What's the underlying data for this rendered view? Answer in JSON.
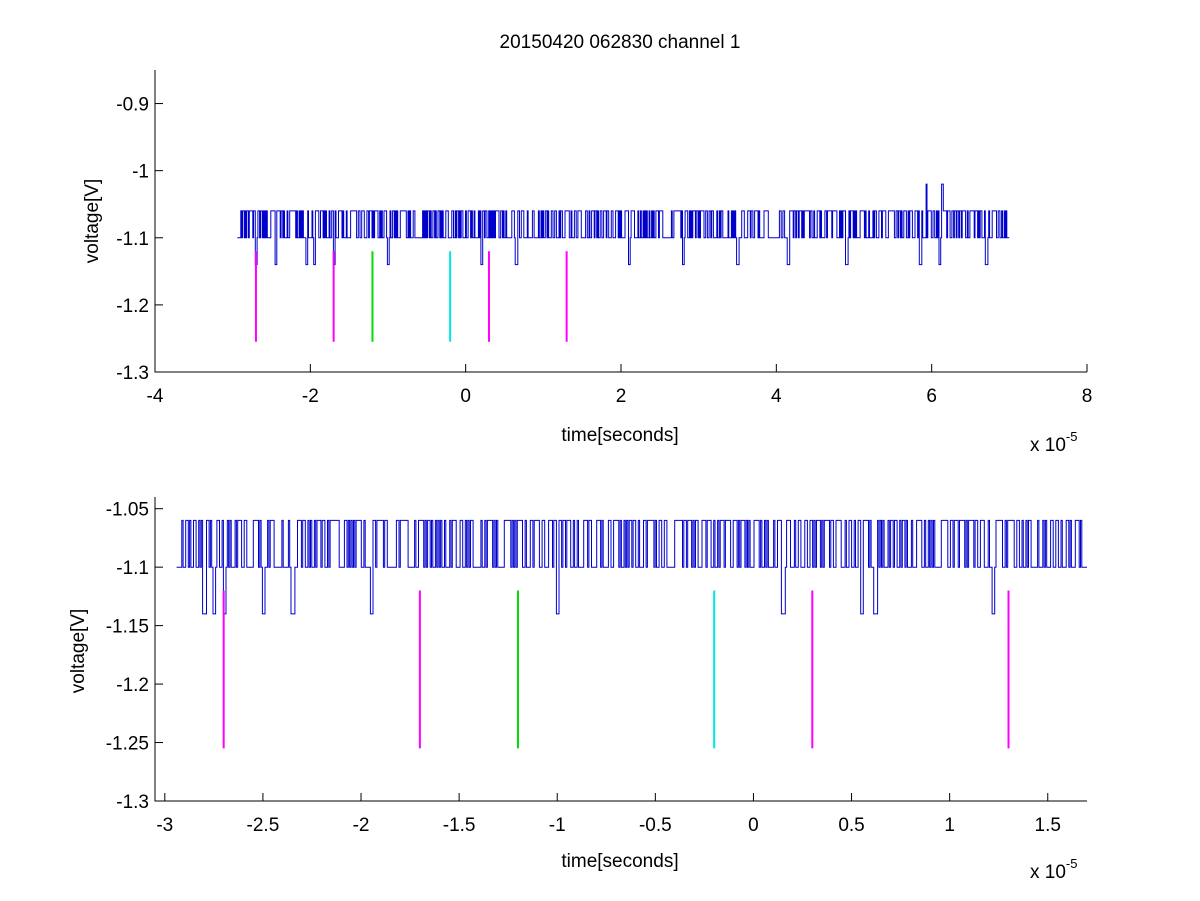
{
  "figure_title": "20150420 062830 channel 1",
  "chart_data": [
    {
      "type": "line",
      "title": "20150420 062830 channel 1",
      "xlabel": "time[seconds]",
      "ylabel": "voltage[V]",
      "x_exponent_label": "x 10",
      "x_exponent": "-5",
      "xlim": [
        -4,
        8
      ],
      "ylim": [
        -1.3,
        -0.85
      ],
      "x_ticks": [
        -4,
        -2,
        0,
        2,
        4,
        6,
        8
      ],
      "x_tick_labels": [
        "-4",
        "-2",
        "0",
        "2",
        "4",
        "6",
        "8"
      ],
      "y_ticks": [
        -1.3,
        -1.2,
        -1.1,
        -1.0,
        -0.9
      ],
      "y_tick_labels": [
        "-1.3",
        "-1.2",
        "-1.1",
        "-1",
        "-0.9"
      ],
      "grid": false,
      "series": [
        {
          "kind": "noisy-trace",
          "color": "#0000cc",
          "x_range": [
            -2.94,
            7.0
          ],
          "baseline": -1.1,
          "upper_level": -1.06,
          "lower_level": -1.14,
          "spikes": [
            {
              "x": 5.93,
              "y": -1.02
            },
            {
              "x": 6.13,
              "y": -1.02
            }
          ],
          "dips": [
            -2.7,
            -2.45,
            -2.05,
            -1.95,
            -1.7,
            -1.0,
            0.2,
            0.65,
            2.1,
            2.8,
            3.5,
            4.15,
            4.9,
            5.85,
            6.1,
            6.7
          ]
        }
      ],
      "markers": [
        {
          "x": -2.7,
          "y_top": -1.12,
          "y_bottom": -1.255,
          "color": "#ff00ff"
        },
        {
          "x": -1.7,
          "y_top": -1.12,
          "y_bottom": -1.255,
          "color": "#ff00ff"
        },
        {
          "x": -1.2,
          "y_top": -1.12,
          "y_bottom": -1.255,
          "color": "#00dd00"
        },
        {
          "x": -0.2,
          "y_top": -1.12,
          "y_bottom": -1.255,
          "color": "#00e5e5"
        },
        {
          "x": 0.3,
          "y_top": -1.12,
          "y_bottom": -1.255,
          "color": "#ff00ff"
        },
        {
          "x": 1.3,
          "y_top": -1.12,
          "y_bottom": -1.255,
          "color": "#ff00ff"
        }
      ]
    },
    {
      "type": "line",
      "title": "",
      "xlabel": "time[seconds]",
      "ylabel": "voltage[V]",
      "x_exponent_label": "x 10",
      "x_exponent": "-5",
      "xlim": [
        -3.05,
        1.7
      ],
      "ylim": [
        -1.3,
        -1.04
      ],
      "x_ticks": [
        -3,
        -2.5,
        -2,
        -1.5,
        -1,
        -0.5,
        0,
        0.5,
        1,
        1.5
      ],
      "x_tick_labels": [
        "-3",
        "-2.5",
        "-2",
        "-1.5",
        "-1",
        "-0.5",
        "0",
        "0.5",
        "1",
        "1.5"
      ],
      "y_ticks": [
        -1.3,
        -1.25,
        -1.2,
        -1.15,
        -1.1,
        -1.05
      ],
      "y_tick_labels": [
        "-1.3",
        "-1.25",
        "-1.2",
        "-1.15",
        "-1.1",
        "-1.05"
      ],
      "grid": false,
      "series": [
        {
          "kind": "noisy-trace",
          "color": "#0000cc",
          "x_range": [
            -2.94,
            1.7
          ],
          "baseline": -1.1,
          "upper_level": -1.06,
          "lower_level": -1.14,
          "spikes": [],
          "dips": [
            -2.8,
            -2.75,
            -2.7,
            -2.5,
            -2.35,
            -1.95,
            -1.0,
            0.15,
            0.55,
            0.62,
            1.22
          ]
        }
      ],
      "markers": [
        {
          "x": -2.7,
          "y_top": -1.12,
          "y_bottom": -1.255,
          "color": "#ff00ff"
        },
        {
          "x": -1.7,
          "y_top": -1.12,
          "y_bottom": -1.255,
          "color": "#ff00ff"
        },
        {
          "x": -1.2,
          "y_top": -1.12,
          "y_bottom": -1.255,
          "color": "#00dd00"
        },
        {
          "x": -0.2,
          "y_top": -1.12,
          "y_bottom": -1.255,
          "color": "#00e5e5"
        },
        {
          "x": 0.3,
          "y_top": -1.12,
          "y_bottom": -1.255,
          "color": "#ff00ff"
        },
        {
          "x": 1.3,
          "y_top": -1.12,
          "y_bottom": -1.255,
          "color": "#ff00ff"
        }
      ]
    }
  ]
}
